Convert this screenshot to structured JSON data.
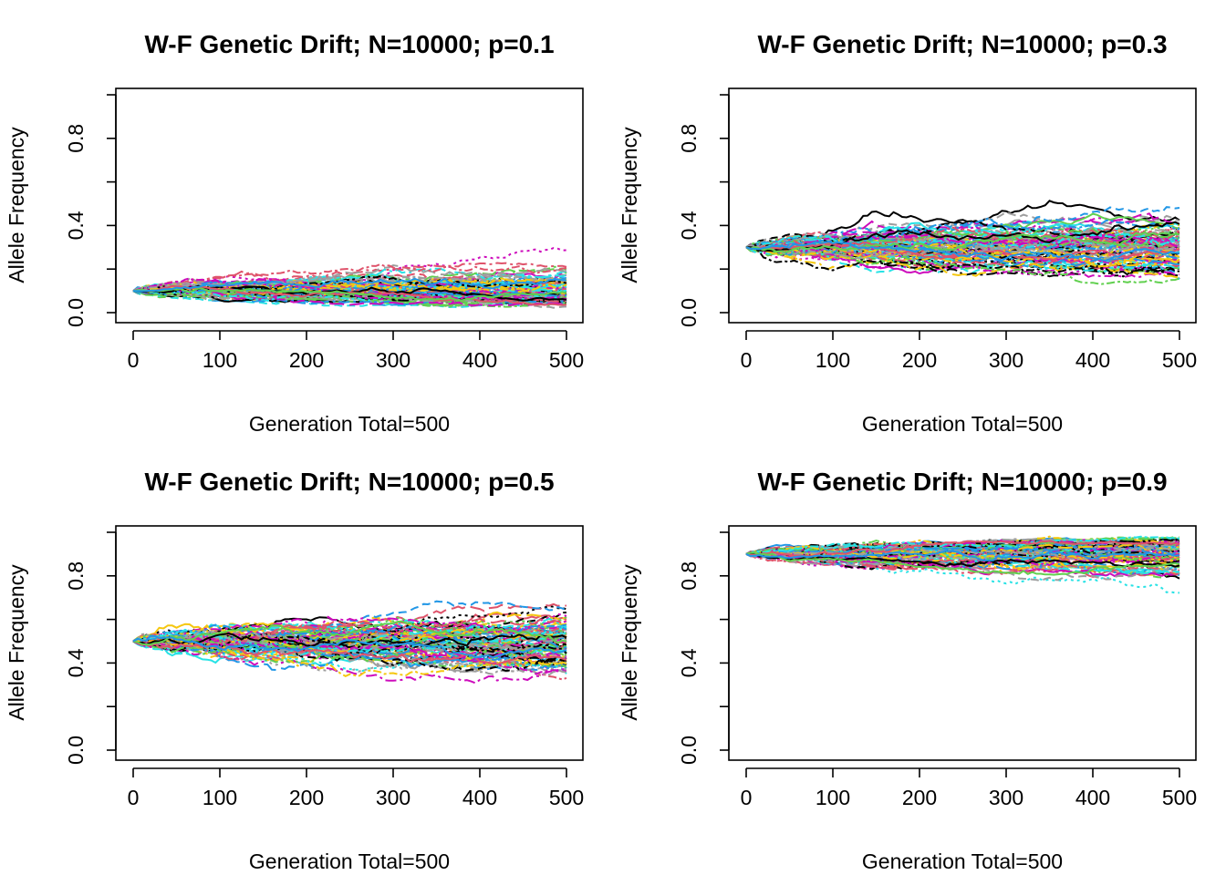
{
  "chart_data": [
    {
      "type": "line",
      "title": "W-F Genetic Drift; N=10000; p=0.1",
      "xlabel": "Generation Total=500",
      "ylabel": "Allele Frequency",
      "xlim": [
        0,
        500
      ],
      "ylim": [
        0,
        1
      ],
      "xticks": [
        "0",
        "100",
        "200",
        "300",
        "400",
        "500"
      ],
      "yticks": [
        "0.0",
        "0.4",
        "0.8"
      ],
      "p0": 0.1,
      "n_replicates": 100,
      "generations": 500,
      "final_range": [
        0.0,
        0.25
      ]
    },
    {
      "type": "line",
      "title": "W-F Genetic Drift; N=10000; p=0.3",
      "xlabel": "Generation Total=500",
      "ylabel": "Allele Frequency",
      "xlim": [
        0,
        500
      ],
      "ylim": [
        0,
        1
      ],
      "xticks": [
        "0",
        "100",
        "200",
        "300",
        "400",
        "500"
      ],
      "yticks": [
        "0.0",
        "0.4",
        "0.8"
      ],
      "p0": 0.3,
      "n_replicates": 100,
      "generations": 500,
      "final_range": [
        0.16,
        0.53
      ]
    },
    {
      "type": "line",
      "title": "W-F Genetic Drift; N=10000; p=0.5",
      "xlabel": "Generation Total=500",
      "ylabel": "Allele Frequency",
      "xlim": [
        0,
        500
      ],
      "ylim": [
        0,
        1
      ],
      "xticks": [
        "0",
        "100",
        "200",
        "300",
        "400",
        "500"
      ],
      "yticks": [
        "0.0",
        "0.4",
        "0.8"
      ],
      "p0": 0.5,
      "n_replicates": 100,
      "generations": 500,
      "final_range": [
        0.3,
        0.64
      ]
    },
    {
      "type": "line",
      "title": "W-F Genetic Drift; N=10000; p=0.9",
      "xlabel": "Generation Total=500",
      "ylabel": "Allele Frequency",
      "xlim": [
        0,
        500
      ],
      "ylim": [
        0,
        1
      ],
      "xticks": [
        "0",
        "100",
        "200",
        "300",
        "400",
        "500"
      ],
      "yticks": [
        "0.0",
        "0.4",
        "0.8"
      ],
      "p0": 0.9,
      "n_replicates": 100,
      "generations": 500,
      "final_range": [
        0.74,
        1.0
      ]
    }
  ],
  "series_colors": [
    "#000000",
    "#DF536B",
    "#61D04F",
    "#2297E6",
    "#28E2E5",
    "#CD0BBC",
    "#F5C710",
    "#9E9E9E"
  ]
}
